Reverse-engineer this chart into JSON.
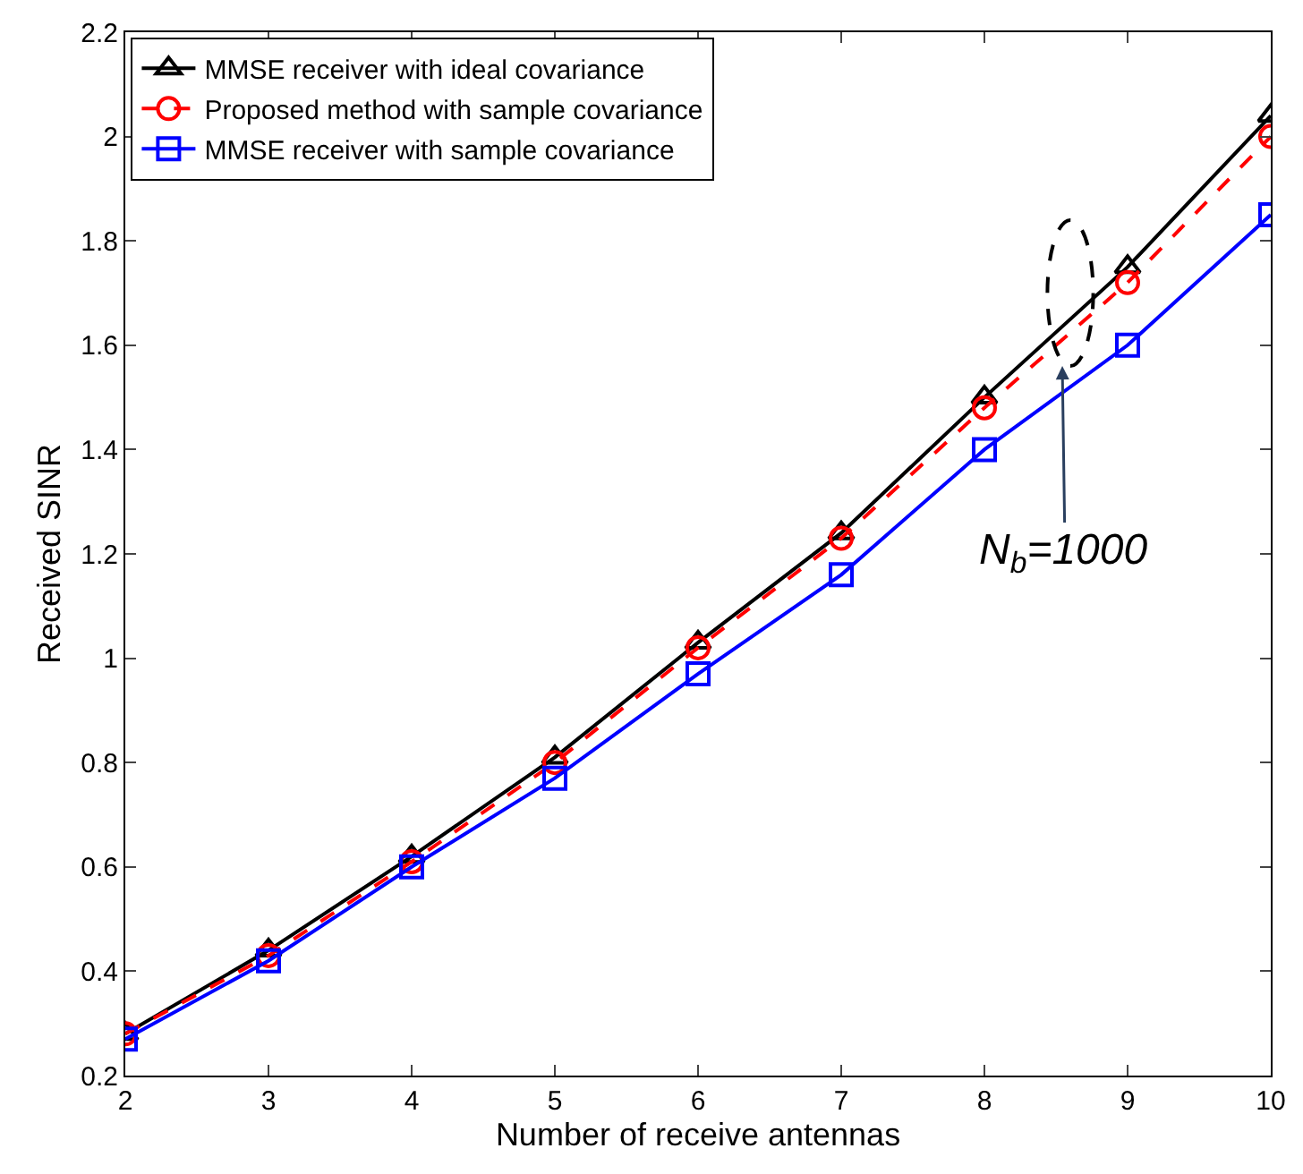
{
  "chart_data": {
    "type": "line",
    "xlabel": "Number of receive antennas",
    "ylabel": "Received SINR",
    "x": [
      2,
      3,
      4,
      5,
      6,
      7,
      8,
      9,
      10
    ],
    "series": [
      {
        "name": "MMSE receiver with ideal covariance",
        "color": "#000000",
        "marker": "triangle",
        "line_style": "solid",
        "values": [
          0.28,
          0.44,
          0.62,
          0.81,
          1.03,
          1.24,
          1.5,
          1.75,
          2.04
        ]
      },
      {
        "name": "Proposed method with sample covariance",
        "color": "#ff0000",
        "marker": "circle",
        "line_style": "dashed",
        "values": [
          0.28,
          0.43,
          0.61,
          0.8,
          1.02,
          1.23,
          1.48,
          1.72,
          2.0
        ]
      },
      {
        "name": "MMSE receiver with sample covariance",
        "color": "#0000ff",
        "marker": "square",
        "line_style": "solid",
        "values": [
          0.27,
          0.42,
          0.6,
          0.77,
          0.97,
          1.16,
          1.4,
          1.6,
          1.85
        ]
      }
    ],
    "xlim": [
      2,
      10
    ],
    "xticks": [
      2,
      3,
      4,
      5,
      6,
      7,
      8,
      9,
      10
    ],
    "ylim": [
      0.2,
      2.2
    ],
    "yticks": [
      0.2,
      0.4,
      0.6,
      0.8,
      1,
      1.2,
      1.4,
      1.6,
      1.8,
      2,
      2.2
    ],
    "legend": "top left",
    "annotations": [
      "N$_{b}$=1000"
    ]
  }
}
